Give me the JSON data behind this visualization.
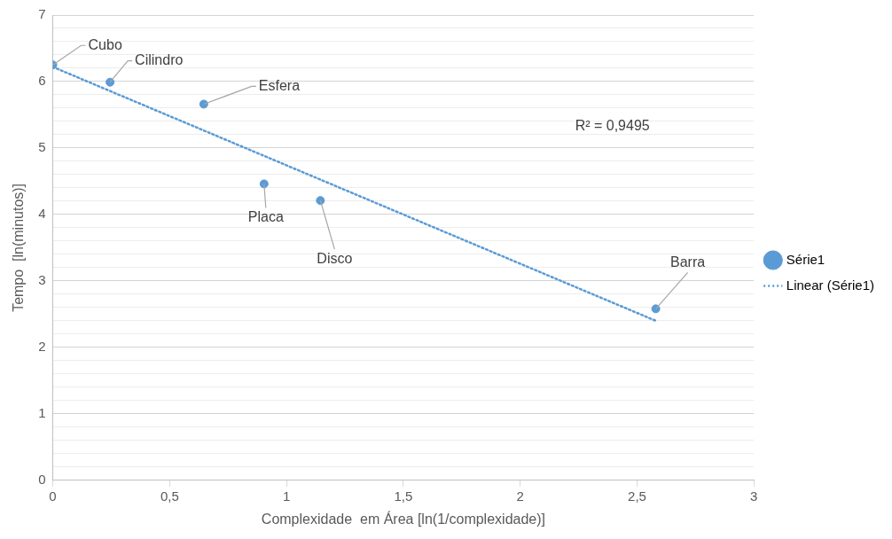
{
  "chart_data": {
    "type": "scatter",
    "xlabel": "Complexidade  em Área [ln(1/complexidade)]",
    "ylabel": "Tempo  [ln(minutos)]",
    "x": [
      0,
      0.245,
      0.646,
      0.904,
      1.145,
      2.58
    ],
    "series": [
      {
        "name": "Série1",
        "color": "#5b9bd5",
        "values": [
          6.25,
          5.99,
          5.66,
          4.46,
          4.21,
          2.58
        ],
        "marker": "circle"
      },
      {
        "name": "Linear (Série1)",
        "type": "line",
        "color": "#5b9bd5",
        "x": [
          0,
          2.58
        ],
        "values": [
          6.22,
          2.4
        ],
        "line_style": "dotted",
        "marker": "none"
      }
    ],
    "xlim": [
      0,
      3
    ],
    "xticks": [
      0,
      {
        "value": 0.5,
        "label": "0,5"
      },
      1,
      {
        "value": 1.5,
        "label": "1,5"
      },
      2,
      {
        "value": 2.5,
        "label": "2,5"
      },
      3
    ],
    "ylim": [
      0,
      7
    ],
    "yticks": [
      0,
      {
        "value": 0.2,
        "label": null
      },
      {
        "value": 0.4,
        "label": null
      },
      {
        "value": 0.6,
        "label": null
      },
      {
        "value": 0.8,
        "label": null
      },
      1,
      {
        "value": 1.2,
        "label": null
      },
      {
        "value": 1.4,
        "label": null
      },
      {
        "value": 1.6,
        "label": null
      },
      {
        "value": 1.8,
        "label": null
      },
      2,
      {
        "value": 2.2,
        "label": null
      },
      {
        "value": 2.4,
        "label": null
      },
      {
        "value": 2.6,
        "label": null
      },
      {
        "value": 2.8,
        "label": null
      },
      3,
      {
        "value": 3.2,
        "label": null
      },
      {
        "value": 3.4,
        "label": null
      },
      {
        "value": 3.6,
        "label": null
      },
      {
        "value": 3.8,
        "label": null
      },
      4,
      {
        "value": 4.2,
        "label": null
      },
      {
        "value": 4.4,
        "label": null
      },
      {
        "value": 4.6,
        "label": null
      },
      {
        "value": 4.8,
        "label": null
      },
      5,
      {
        "value": 5.2,
        "label": null
      },
      {
        "value": 5.4,
        "label": null
      },
      {
        "value": 5.6,
        "label": null
      },
      {
        "value": 5.8,
        "label": null
      },
      6,
      {
        "value": 6.2,
        "label": null
      },
      {
        "value": 6.4,
        "label": null
      },
      {
        "value": 6.6,
        "label": null
      },
      {
        "value": 6.8,
        "label": null
      },
      7
    ],
    "grid": "y",
    "legend": "right",
    "annotations": [
      {
        "text": "Cubo",
        "x": 0,
        "y": 6.25
      },
      {
        "text": "Cilindro",
        "x": 0.245,
        "y": 5.99
      },
      {
        "text": "Esfera",
        "x": 0.646,
        "y": 5.66
      },
      {
        "text": "Placa",
        "x": 0.904,
        "y": 4.46
      },
      {
        "text": "Disco",
        "x": 1.145,
        "y": 4.21
      },
      {
        "text": "Barra",
        "x": 2.58,
        "y": 2.58
      },
      "R² = 0,9495"
    ]
  }
}
